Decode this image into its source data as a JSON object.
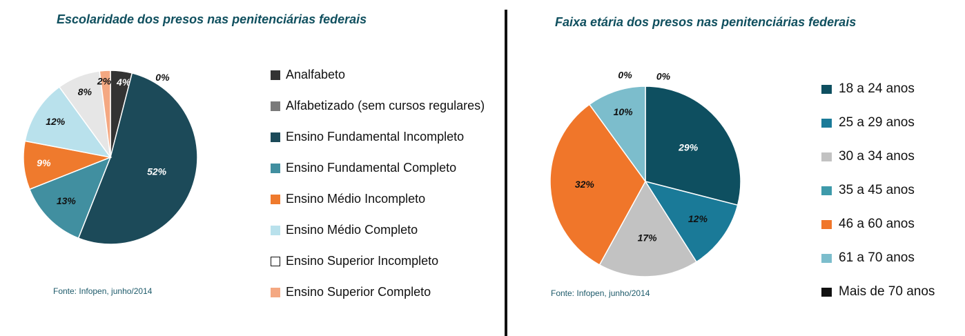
{
  "chart_data": [
    {
      "type": "pie",
      "title": "Escolaridade dos presos nas penitenciárias federais",
      "source": "Fonte: Infopen, junho/2014",
      "legend_position": "right",
      "slices": [
        {
          "name": "Analfabeto",
          "value": 4,
          "label": "4%",
          "color": "#333333",
          "label_color": "#ffffff"
        },
        {
          "name": "Alfabetizado (sem cursos regulares)",
          "value": 0,
          "label": "0%",
          "color": "#7a7a7a",
          "label_color": "#111111"
        },
        {
          "name": "Ensino Fundamental Incompleto",
          "value": 52,
          "label": "52%",
          "color": "#1c4a59",
          "label_color": "#ffffff"
        },
        {
          "name": "Ensino Fundamental Completo",
          "value": 13,
          "label": "13%",
          "color": "#418fa0",
          "label_color": "#111111"
        },
        {
          "name": "Ensino Médio Incompleto",
          "value": 9,
          "label": "9%",
          "color": "#ef7a2d",
          "label_color": "#ffffff"
        },
        {
          "name": "Ensino Médio Completo",
          "value": 12,
          "label": "12%",
          "color": "#b9e1ec",
          "label_color": "#111111"
        },
        {
          "name": "Ensino Superior Incompleto",
          "value": 8,
          "label": "8%",
          "color": "#e6e6e6",
          "label_color": "#111111"
        },
        {
          "name": "Ensino Superior Completo",
          "value": 2,
          "label": "2%",
          "color": "#f4a882",
          "label_color": "#111111"
        }
      ]
    },
    {
      "type": "pie",
      "title": "Faixa etária dos presos nas penitenciárias federais",
      "source": "Fonte: Infopen, junho/2014",
      "legend_position": "right",
      "slices": [
        {
          "name": "18 a 24 anos",
          "value": 29,
          "label": "29%",
          "color": "#0e4f60",
          "label_color": "#ffffff"
        },
        {
          "name": "25 a 29 anos",
          "value": 12,
          "label": "12%",
          "color": "#1a7a98",
          "label_color": "#111111"
        },
        {
          "name": "30 a 34 anos",
          "value": 17,
          "label": "17%",
          "color": "#c2c2c2",
          "label_color": "#111111"
        },
        {
          "name": "35 a 45 anos",
          "value": 0,
          "label": "",
          "color": "#3e9aaa",
          "label_color": "#111111"
        },
        {
          "name": "46 a 60 anos",
          "value": 32,
          "label": "32%",
          "color": "#f0762a",
          "label_color": "#111111"
        },
        {
          "name": "61 a 70 anos",
          "value": 10,
          "label": "10%",
          "color": "#7cbdcc",
          "label_color": "#111111"
        },
        {
          "name": "Mais de 70 anos",
          "value": 0,
          "label": "0%",
          "color": "#111111",
          "label_color": "#111111"
        }
      ],
      "extra_labels": [
        "0%"
      ]
    }
  ]
}
